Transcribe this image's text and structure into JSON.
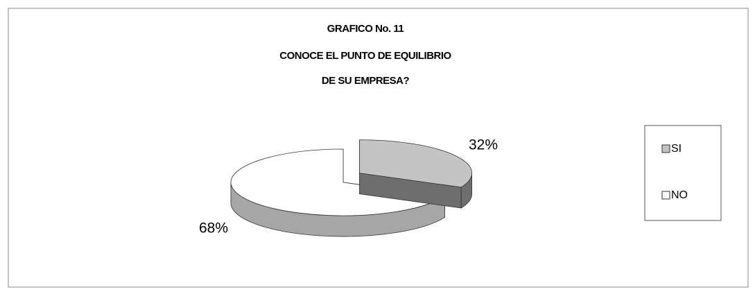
{
  "chart_data": {
    "type": "pie3d",
    "title": [
      "GRAFICO No. 11",
      "CONOCE EL PUNTO DE EQUILIBRIO",
      "DE SU EMPRESA?"
    ],
    "categories": [
      "SI",
      "NO"
    ],
    "values": [
      32,
      68
    ],
    "value_labels": [
      "32%",
      "68%"
    ],
    "colors": [
      "#c4c4c4",
      "#ffffff"
    ],
    "side_colors": [
      "#6e6e6e",
      "#a6a6a6"
    ],
    "legend": "right"
  }
}
